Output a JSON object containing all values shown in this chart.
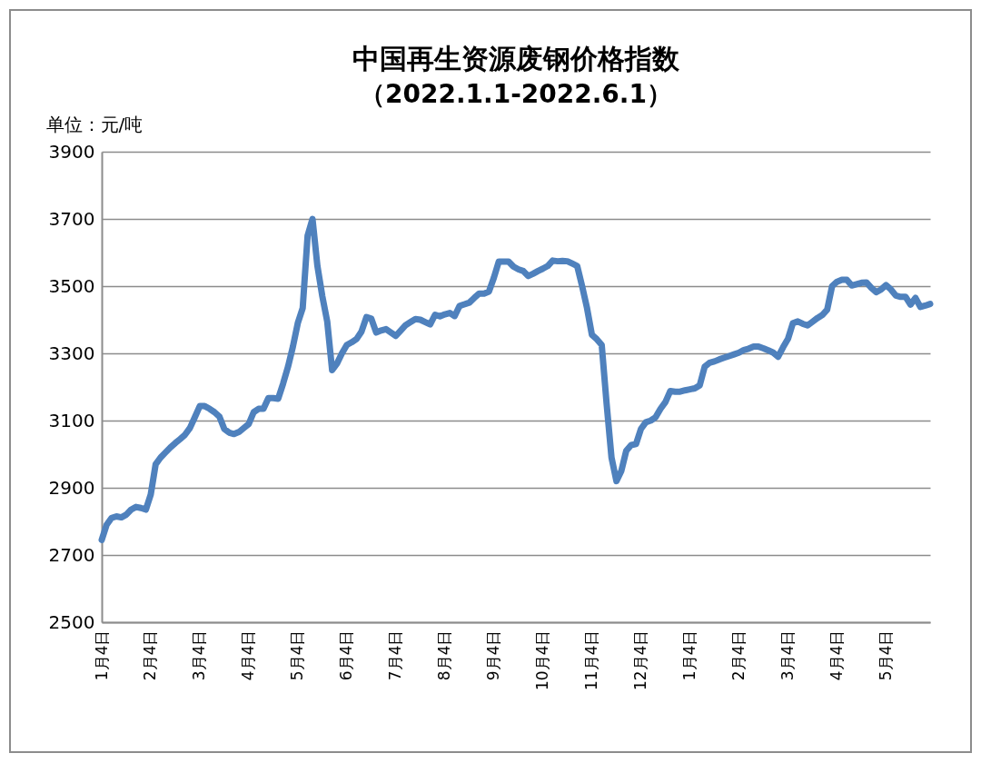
{
  "chart_data": {
    "type": "line",
    "title": "中国再生资源废钢价格指数",
    "subtitle": "（2022.1.1-2022.6.1）",
    "ylabel": "单位：元/吨",
    "categories": [
      "1月4日",
      null,
      null,
      null,
      null,
      null,
      null,
      null,
      null,
      null,
      "2月4日",
      null,
      null,
      null,
      null,
      null,
      null,
      null,
      null,
      null,
      "3月4日",
      null,
      null,
      null,
      null,
      null,
      null,
      null,
      null,
      null,
      "4月4日",
      null,
      null,
      null,
      null,
      null,
      null,
      null,
      null,
      null,
      "5月4日",
      null,
      null,
      null,
      null,
      null,
      null,
      null,
      null,
      null,
      "6月4日",
      null,
      null,
      null,
      null,
      null,
      null,
      null,
      null,
      null,
      "7月4日",
      null,
      null,
      null,
      null,
      null,
      null,
      null,
      null,
      null,
      "8月4日",
      null,
      null,
      null,
      null,
      null,
      null,
      null,
      null,
      null,
      "9月4日",
      null,
      null,
      null,
      null,
      null,
      null,
      null,
      null,
      null,
      "10月4日",
      null,
      null,
      null,
      null,
      null,
      null,
      null,
      null,
      null,
      "11月4日",
      null,
      null,
      null,
      null,
      null,
      null,
      null,
      null,
      null,
      "12月4日",
      null,
      null,
      null,
      null,
      null,
      null,
      null,
      null,
      null,
      "1月4日",
      null,
      null,
      null,
      null,
      null,
      null,
      null,
      null,
      null,
      "2月4日",
      null,
      null,
      null,
      null,
      null,
      null,
      null,
      null,
      null,
      "3月4日",
      null,
      null,
      null,
      null,
      null,
      null,
      null,
      null,
      null,
      "4月4日",
      null,
      null,
      null,
      null,
      null,
      null,
      null,
      null,
      null,
      "5月4日",
      null,
      null,
      null,
      null,
      null,
      null,
      null,
      null,
      null
    ],
    "series": [
      {
        "color": "#4f81bd",
        "values": [
          2745,
          2790,
          2810,
          2815,
          2812,
          2820,
          2835,
          2843,
          2840,
          2835,
          2880,
          2970,
          2990,
          3005,
          3020,
          3033,
          3045,
          3058,
          3078,
          3110,
          3143,
          3143,
          3135,
          3125,
          3112,
          3075,
          3064,
          3060,
          3066,
          3078,
          3090,
          3125,
          3135,
          3135,
          3167,
          3167,
          3165,
          3210,
          3260,
          3320,
          3390,
          3435,
          3650,
          3700,
          3560,
          3470,
          3395,
          3250,
          3270,
          3300,
          3325,
          3333,
          3343,
          3365,
          3408,
          3403,
          3362,
          3368,
          3372,
          3362,
          3352,
          3368,
          3384,
          3393,
          3402,
          3400,
          3393,
          3386,
          3415,
          3410,
          3416,
          3420,
          3411,
          3441,
          3446,
          3451,
          3465,
          3478,
          3478,
          3484,
          3525,
          3573,
          3573,
          3573,
          3558,
          3550,
          3545,
          3530,
          3537,
          3545,
          3552,
          3560,
          3576,
          3574,
          3575,
          3574,
          3567,
          3560,
          3500,
          3435,
          3355,
          3342,
          3325,
          3150,
          2990,
          2920,
          2950,
          3010,
          3027,
          3030,
          3075,
          3095,
          3100,
          3110,
          3135,
          3155,
          3188,
          3186,
          3186,
          3190,
          3193,
          3196,
          3205,
          3260,
          3272,
          3276,
          3282,
          3287,
          3292,
          3297,
          3302,
          3310,
          3314,
          3320,
          3320,
          3315,
          3309,
          3302,
          3290,
          3318,
          3343,
          3390,
          3395,
          3388,
          3383,
          3394,
          3405,
          3414,
          3430,
          3500,
          3513,
          3519,
          3519,
          3502,
          3506,
          3510,
          3511,
          3495,
          3482,
          3490,
          3503,
          3490,
          3472,
          3468,
          3468,
          3445,
          3465,
          3438,
          3442,
          3447
        ]
      }
    ],
    "ylim": [
      2500,
      3900
    ],
    "yticks": [
      2500,
      2700,
      2900,
      3100,
      3300,
      3500,
      3700,
      3900
    ],
    "grid": "y",
    "marker": "none",
    "line_style": "solid"
  }
}
